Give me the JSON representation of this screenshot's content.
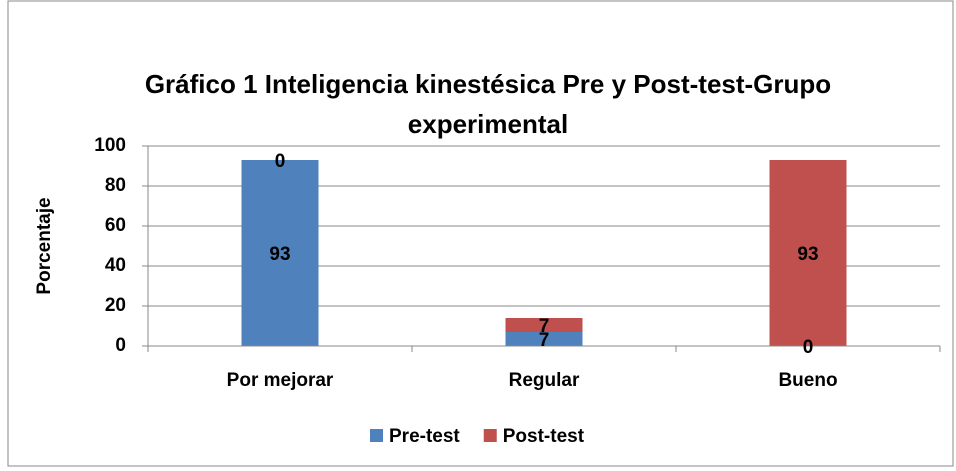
{
  "chart_data": {
    "type": "bar",
    "stacked": true,
    "title": "Gráfico 1 Inteligencia kinestésica Pre y Post-test-Grupo experimental",
    "y_label": "Porcentaje",
    "categories": [
      "Por mejorar",
      "Regular",
      "Bueno"
    ],
    "series": [
      {
        "name": "Pre-test",
        "color": "#4f81bd",
        "values": [
          93,
          7,
          0
        ]
      },
      {
        "name": "Post-test",
        "color": "#c0504d",
        "values": [
          0,
          7,
          93
        ]
      }
    ],
    "ylim": [
      0,
      100
    ],
    "yticks": [
      0,
      20,
      40,
      60,
      80,
      100
    ],
    "grid": true,
    "legend": "bottom"
  }
}
